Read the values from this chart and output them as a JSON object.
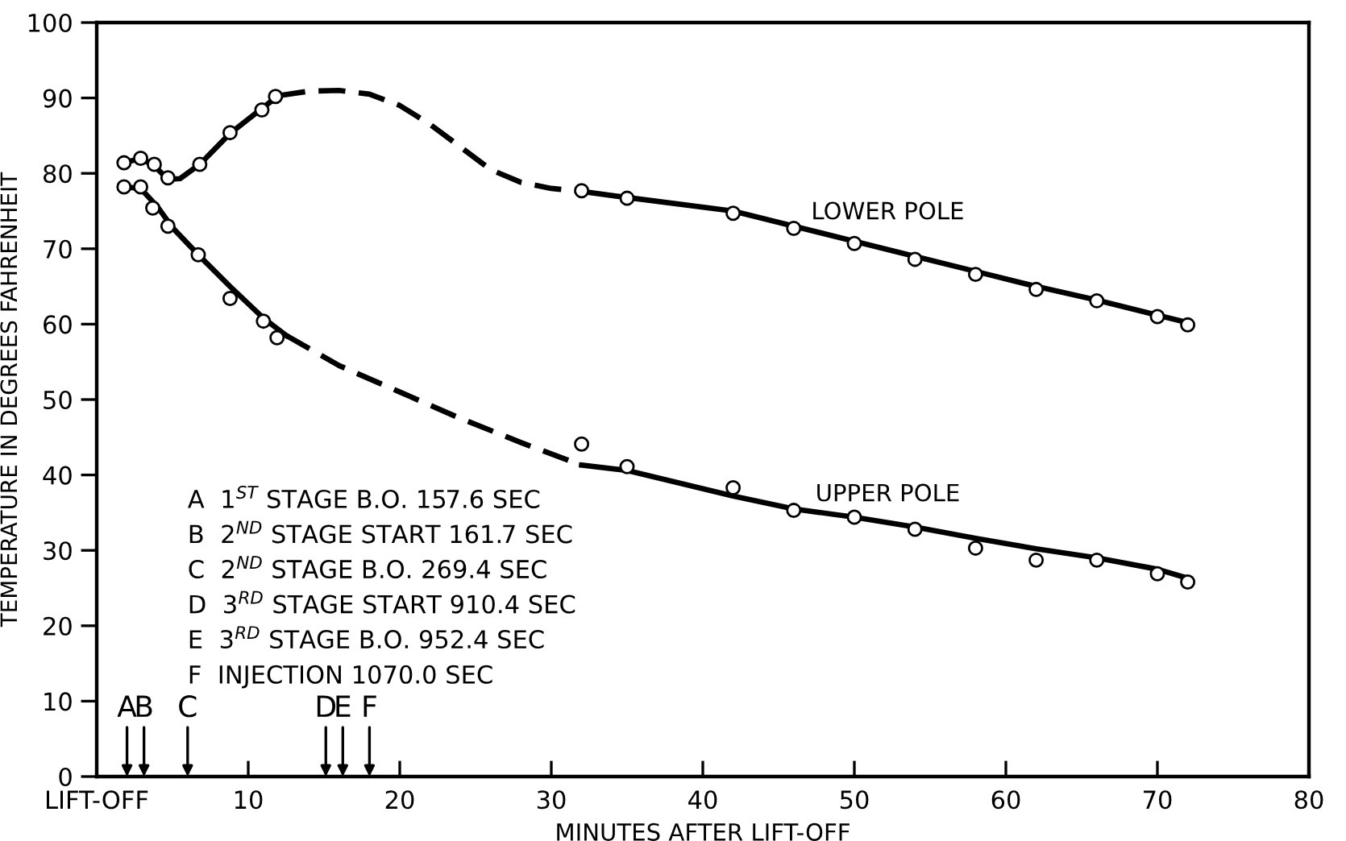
{
  "chart_data": {
    "type": "scatter",
    "xlabel": "MINUTES AFTER LIFT-OFF",
    "ylabel": "TEMPERATURE IN DEGREES FAHRENHEIT",
    "xlim": [
      0,
      80
    ],
    "xticks": [
      {
        "value": 0,
        "label": "LIFT-OFF"
      },
      10,
      20,
      30,
      40,
      50,
      60,
      70,
      80
    ],
    "ylim": [
      0,
      100
    ],
    "yticks": [
      0,
      10,
      20,
      30,
      40,
      50,
      60,
      70,
      80,
      90,
      100
    ],
    "grid": false,
    "series": [
      {
        "name": "LOWER POLE",
        "marker": "circle",
        "color": "#000000",
        "x": [
          1.8,
          2.9,
          3.8,
          4.7,
          6.8,
          8.8,
          10.9,
          11.8,
          32,
          35,
          42,
          46,
          50,
          54,
          58,
          62,
          66,
          70,
          72
        ],
        "values": [
          81.4,
          82.0,
          81.2,
          79.4,
          81.2,
          85.4,
          88.4,
          90.2,
          77.7,
          76.7,
          74.7,
          72.7,
          70.7,
          68.6,
          66.6,
          64.6,
          63.1,
          61.0,
          59.9
        ]
      },
      {
        "name": "UPPER POLE",
        "marker": "circle",
        "color": "#000000",
        "x": [
          1.8,
          2.9,
          3.7,
          4.7,
          6.7,
          8.8,
          11.0,
          11.9,
          32,
          35,
          42,
          46,
          50,
          54,
          58,
          62,
          66,
          70,
          72
        ],
        "values": [
          78.2,
          78.2,
          75.4,
          73.0,
          69.2,
          63.4,
          60.4,
          58.2,
          44.1,
          41.1,
          38.3,
          35.3,
          34.4,
          32.8,
          30.3,
          28.7,
          28.7,
          26.9,
          25.8
        ]
      },
      {
        "type": "line",
        "line_style": "solid",
        "color": "#000000",
        "x": [
          1.8,
          2.9,
          3.8,
          4.7,
          5.5,
          6.8,
          8.8,
          10.9,
          12
        ],
        "values": [
          81.4,
          82,
          81,
          79.2,
          79.3,
          81.2,
          85.3,
          88.6,
          90.3
        ]
      },
      {
        "type": "line",
        "line_style": "dashed",
        "color": "#000000",
        "x": [
          12,
          14,
          16,
          18,
          20,
          22,
          24,
          26,
          28,
          30,
          32
        ],
        "values": [
          90.3,
          90.9,
          91,
          90.5,
          89,
          86.5,
          83.5,
          80.5,
          78.8,
          78,
          77.6
        ]
      },
      {
        "type": "line",
        "line_style": "solid",
        "color": "#000000",
        "x": [
          32,
          35,
          42,
          46,
          50,
          54,
          58,
          62,
          66,
          70,
          72
        ],
        "values": [
          77.6,
          76.8,
          75,
          73,
          71,
          69,
          67,
          65,
          63.2,
          61.2,
          60.2
        ]
      },
      {
        "type": "line",
        "line_style": "solid",
        "color": "#000000",
        "x": [
          1.8,
          2.9,
          4,
          5,
          6.8,
          8.8,
          11,
          12.5
        ],
        "values": [
          78.2,
          78,
          75.6,
          72.8,
          69,
          65,
          60.8,
          58.5
        ]
      },
      {
        "type": "line",
        "line_style": "dashed",
        "color": "#000000",
        "x": [
          12.5,
          16,
          20,
          24,
          28,
          32
        ],
        "values": [
          58.5,
          54.5,
          51,
          47.5,
          44.3,
          41.3
        ]
      },
      {
        "type": "line",
        "line_style": "solid",
        "color": "#000000",
        "x": [
          32,
          35,
          42,
          46,
          50,
          54,
          58,
          62,
          66,
          70,
          72
        ],
        "values": [
          41.3,
          40.6,
          37.2,
          35.5,
          34.4,
          33.1,
          31.6,
          30.2,
          29.0,
          27.5,
          26.3
        ]
      }
    ],
    "annotations": [
      "A",
      "B",
      "C",
      "D",
      "E",
      "F",
      "A  1$^{ST}$ STAGE B.O. 157.6 SEC",
      "B  2$^{ND}$ STAGE START 161.7 SEC",
      "C  2$^{ND}$ STAGE B.O. 269.4 SEC",
      "D  3$^{RD}$ STAGE START 910.4 SEC",
      "E  3$^{RD}$ STAGE B.O. 952.4 SEC",
      "F  INJECTION 1070.0 SEC"
    ]
  }
}
